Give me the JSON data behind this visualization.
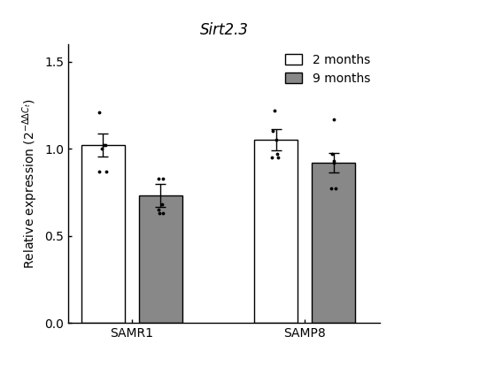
{
  "title": "Sirt2.3",
  "ylabel": "Relative expression (2⁻ΔΔCt)",
  "xlabel_groups": [
    "SAMR1",
    "SAMP8"
  ],
  "ylim": [
    0.0,
    1.6
  ],
  "yticks": [
    0.0,
    0.5,
    1.0,
    1.5
  ],
  "bar_means": [
    1.02,
    0.73,
    1.05,
    0.92
  ],
  "bar_errors": [
    0.065,
    0.065,
    0.06,
    0.055
  ],
  "bar_colors": [
    "white",
    "#888888",
    "white",
    "#888888"
  ],
  "bar_edgecolors": [
    "black",
    "black",
    "black",
    "black"
  ],
  "group_positions": [
    1,
    2,
    4,
    5
  ],
  "legend_labels": [
    "2 months",
    "9 months"
  ],
  "legend_colors": [
    "white",
    "#888888"
  ],
  "dot_data": {
    "bar0": [
      1.21,
      0.87,
      0.87,
      1.0,
      1.02,
      1.02
    ],
    "bar1": [
      0.83,
      0.83,
      0.65,
      0.63,
      0.63,
      0.68
    ],
    "bar2": [
      1.22,
      1.1,
      0.95,
      0.95,
      0.97,
      1.05
    ],
    "bar3": [
      1.17,
      0.97,
      0.77,
      0.77,
      0.92,
      0.93
    ]
  },
  "dot_jitter": {
    "bar0": [
      -0.06,
      -0.07,
      0.06,
      -0.02,
      0.01,
      0.04
    ],
    "bar1": [
      -0.04,
      0.04,
      -0.04,
      -0.02,
      0.04,
      0.02
    ],
    "bar2": [
      -0.02,
      -0.05,
      -0.07,
      0.04,
      0.02,
      0.0
    ],
    "bar3": [
      0.0,
      -0.03,
      -0.04,
      0.04,
      0.0,
      0.0
    ]
  },
  "bar_width": 0.75,
  "figsize": [
    5.5,
    4.15
  ],
  "dpi": 100
}
